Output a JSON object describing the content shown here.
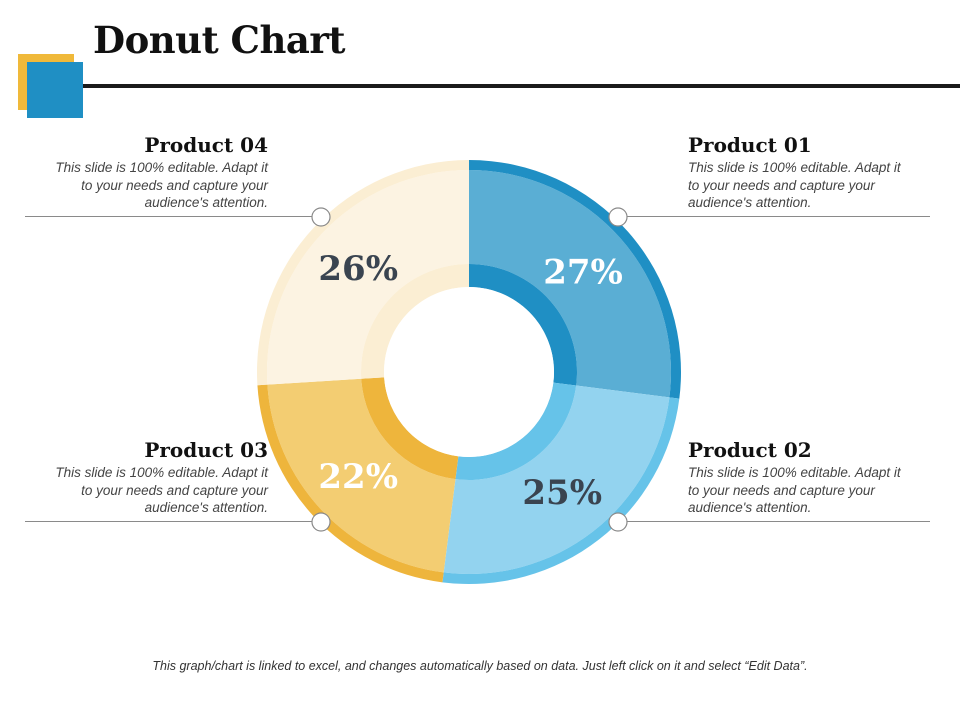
{
  "title": "Donut Chart",
  "footer": "This graph/chart is linked to excel, and changes automatically based on data. Just left click on it and select “Edit Data”.",
  "products": {
    "p01": {
      "title": "Product 01",
      "desc": "This slide is 100% editable.  Adapt it to your needs and capture your audience's attention."
    },
    "p02": {
      "title": "Product 02",
      "desc": "This slide is 100% editable.  Adapt it to your needs and capture your audience's attention."
    },
    "p03": {
      "title": "Product 03",
      "desc": "This slide is 100% editable.  Adapt it to your needs and capture your audience's attention."
    },
    "p04": {
      "title": "Product 04",
      "desc": "This slide is 100% editable.  Adapt it to your needs and capture your audience's attention."
    }
  },
  "colors": {
    "accent_blue": "#1f8fc4",
    "accent_gold": "#f0b93a"
  },
  "chart_data": {
    "type": "pie",
    "categories": [
      "Product 01",
      "Product 02",
      "Product 03",
      "Product 04"
    ],
    "values": [
      27,
      25,
      22,
      26
    ],
    "labels": [
      "27%",
      "25%",
      "22%",
      "26%"
    ],
    "colors": [
      {
        "main": "#5aaed4",
        "rim": "#1f8fc4",
        "label": "#ffffff"
      },
      {
        "main": "#93d3ef",
        "rim": "#66c3e9",
        "label": "#3a4450"
      },
      {
        "main": "#f3cd72",
        "rim": "#eeb53c",
        "label": "#ffffff"
      },
      {
        "main": "#fcf3e2",
        "rim": "#fbeed3",
        "label": "#3a4450"
      }
    ]
  }
}
